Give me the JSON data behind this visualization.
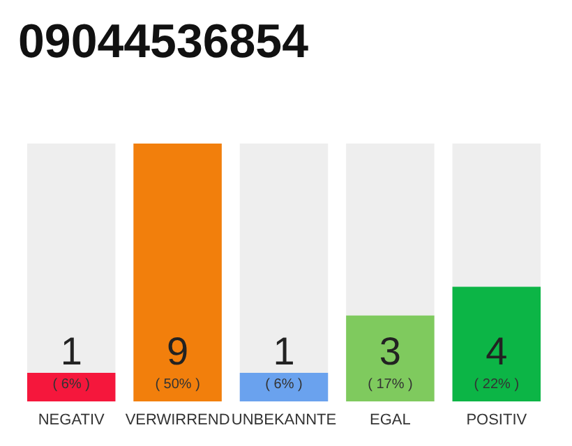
{
  "chart_data": {
    "type": "bar",
    "title": "09044536854",
    "categories": [
      "NEGATIV",
      "VERWIRREND",
      "UNBEKANNTE",
      "EGAL",
      "POSITIV"
    ],
    "values": [
      1,
      9,
      1,
      3,
      4
    ],
    "colors": [
      "#f5173c",
      "#f27f0c",
      "#6aa2ee",
      "#7fca5e",
      "#0cb546"
    ],
    "value_labels": [
      "1\n( 6% )",
      "9\n( 50% )",
      "1\n( 6% )",
      "3\n( 17% )",
      "4\n( 22% )"
    ],
    "ylim": [
      0,
      9
    ]
  }
}
